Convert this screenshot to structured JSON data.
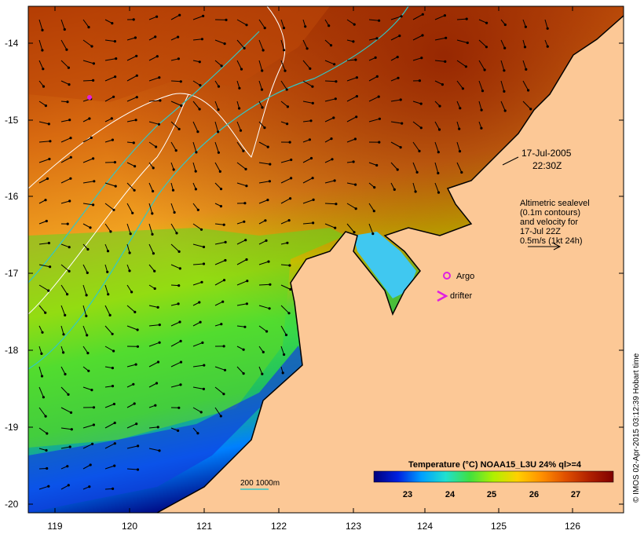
{
  "map": {
    "y_ticks": [
      "-14",
      "-15",
      "-16",
      "-17",
      "-18",
      "-19",
      "-20"
    ],
    "x_ticks": [
      "119",
      "120",
      "121",
      "122",
      "123",
      "124",
      "125",
      "126"
    ],
    "date_line1": "17-Jul-2005",
    "date_line2": "22:30Z",
    "altimetry_note": [
      "Altimetric sealevel",
      "(0.1m contours)",
      "and velocity for",
      "17-Jul 22Z",
      "0.5m/s (1kt 24h)"
    ],
    "legend": {
      "argo_label": "Argo",
      "drifter_label": "drifter",
      "argo_color": "#e020e0",
      "drifter_color": "#e020e0"
    },
    "bathymetry_label": "200  1000m",
    "colorbar": {
      "title": "Temperature (°C) NOAA15_L3U 24% ql>=4",
      "ticks": [
        "23",
        "24",
        "25",
        "26",
        "27"
      ],
      "colors": [
        "#00007a",
        "#0020e0",
        "#00a0ff",
        "#20e0d0",
        "#40e040",
        "#b0f000",
        "#ffd000",
        "#ff9000",
        "#e05000",
        "#b02000",
        "#800000"
      ]
    },
    "credit": "© IMOS 02-Apr-2015 03:12:39 Hobart time",
    "land_color": "#fcc896"
  }
}
